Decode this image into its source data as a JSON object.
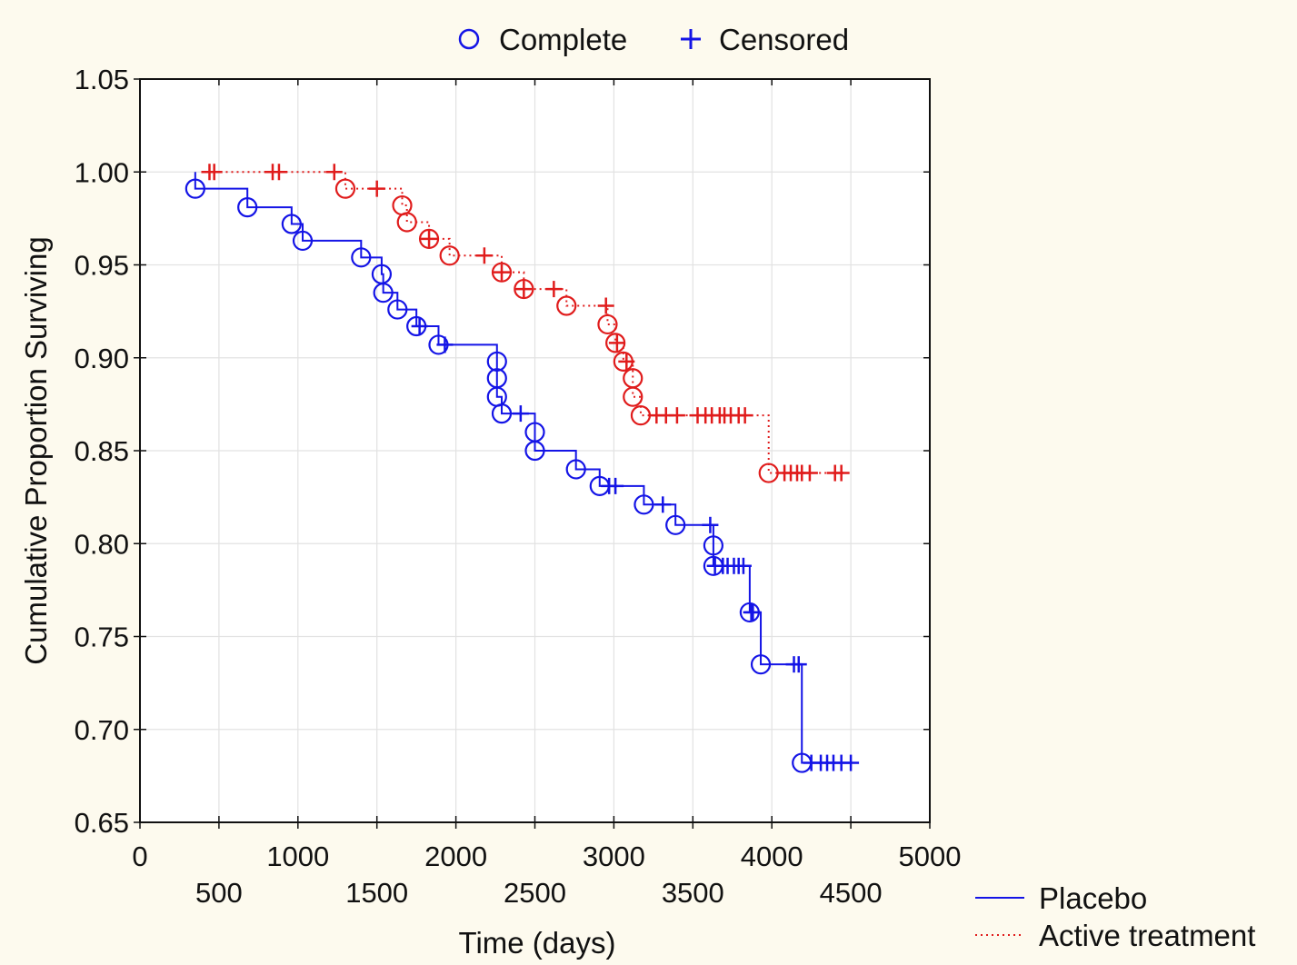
{
  "chart_data": {
    "type": "line",
    "chart_kind": "Kaplan-Meier survival curve",
    "xlabel": "Time (days)",
    "ylabel": "Cumulative Proportion Surviving",
    "xlim": [
      0,
      5000
    ],
    "ylim": [
      0.65,
      1.05
    ],
    "x_ticks_top_row": [
      "0",
      "1000",
      "2000",
      "3000",
      "4000",
      "5000"
    ],
    "x_ticks_bottom_row": [
      "500",
      "1500",
      "2500",
      "3500",
      "4500"
    ],
    "y_ticks": [
      "0.65",
      "0.70",
      "0.75",
      "0.80",
      "0.85",
      "0.90",
      "0.95",
      "1.00",
      "1.05"
    ],
    "grid": true,
    "marker_legend": {
      "position": "top",
      "complete_label": "Complete",
      "censored_label": "Censored"
    },
    "series_legend": {
      "position": "bottom-right",
      "items": [
        "Placebo",
        "Active treatment"
      ]
    },
    "series": [
      {
        "name": "Placebo",
        "color": "#1414e6",
        "line_style": "solid",
        "start": [
          350,
          1.0
        ],
        "events": [
          [
            350,
            0.991
          ],
          [
            680,
            0.981
          ],
          [
            960,
            0.972
          ],
          [
            1030,
            0.963
          ],
          [
            1400,
            0.954
          ],
          [
            1530,
            0.945
          ],
          [
            1540,
            0.935
          ],
          [
            1630,
            0.926
          ],
          [
            1750,
            0.917
          ],
          [
            1890,
            0.907
          ],
          [
            2260,
            0.898
          ],
          [
            2260,
            0.889
          ],
          [
            2260,
            0.879
          ],
          [
            2290,
            0.87
          ],
          [
            2500,
            0.86
          ],
          [
            2500,
            0.85
          ],
          [
            2760,
            0.84
          ],
          [
            2910,
            0.831
          ],
          [
            3190,
            0.821
          ],
          [
            3390,
            0.81
          ],
          [
            3630,
            0.799
          ],
          [
            3630,
            0.788
          ],
          [
            3860,
            0.763
          ],
          [
            3930,
            0.735
          ],
          [
            4190,
            0.682
          ]
        ],
        "censored": [
          1770,
          1930,
          2410,
          2970,
          3010,
          3310,
          3610,
          3640,
          3690,
          3720,
          3760,
          3790,
          3820,
          3870,
          3880,
          4140,
          4170,
          4250,
          4310,
          4350,
          4390,
          4440,
          4500
        ],
        "end_x": 4500
      },
      {
        "name": "Active treatment",
        "color": "#e01c1c",
        "line_style": "dotted",
        "start": [
          440,
          1.0
        ],
        "events": [
          [
            1300,
            0.991
          ],
          [
            1660,
            0.982
          ],
          [
            1690,
            0.973
          ],
          [
            1830,
            0.964
          ],
          [
            1960,
            0.955
          ],
          [
            2290,
            0.946
          ],
          [
            2430,
            0.937
          ],
          [
            2700,
            0.928
          ],
          [
            2960,
            0.918
          ],
          [
            3010,
            0.908
          ],
          [
            3060,
            0.898
          ],
          [
            3120,
            0.889
          ],
          [
            3120,
            0.879
          ],
          [
            3170,
            0.869
          ],
          [
            3980,
            0.838
          ]
        ],
        "censored": [
          440,
          470,
          840,
          880,
          1230,
          1500,
          1830,
          2430,
          2180,
          2290,
          2620,
          2950,
          3020,
          3080,
          3270,
          3330,
          3400,
          3530,
          3580,
          3620,
          3670,
          3700,
          3740,
          3790,
          3830,
          4080,
          4120,
          4160,
          4190,
          4240,
          4400,
          4440
        ],
        "end_x": 4440
      }
    ]
  }
}
